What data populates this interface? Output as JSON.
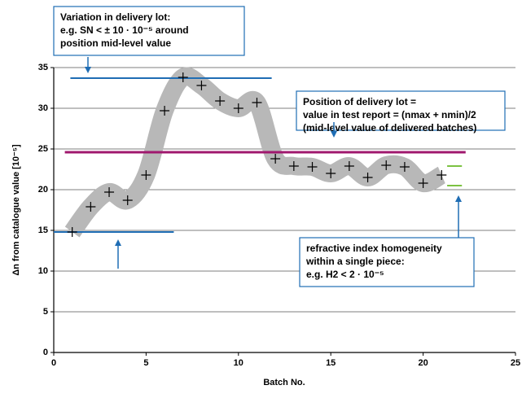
{
  "chart_data": {
    "type": "scatter",
    "xlabel": "Batch No.",
    "ylabel": "Δn from catalogue value [10⁻⁵]",
    "xlim": [
      0,
      25
    ],
    "xticks": [
      0,
      5,
      10,
      15,
      20,
      25
    ],
    "ylim": [
      0,
      35
    ],
    "yticks": [
      0,
      5,
      10,
      15,
      20,
      25,
      30,
      35
    ],
    "grid": true,
    "series": [
      {
        "color": "#000000",
        "x": [
          1,
          2,
          3,
          4,
          5,
          6,
          7,
          8,
          9,
          10,
          11,
          12,
          13,
          14,
          15,
          16,
          17,
          18,
          19,
          20,
          21
        ],
        "values": [
          14.8,
          17.9,
          19.7,
          18.7,
          21.8,
          29.7,
          33.8,
          32.8,
          30.9,
          30.0,
          30.7,
          23.8,
          22.9,
          22.8,
          22.0,
          22.9,
          21.5,
          23.0,
          22.8,
          20.8,
          21.8
        ]
      }
    ],
    "band_color": "#b8b8b8",
    "reference_lines": [
      {
        "y": 33.7,
        "x": [
          0.9,
          11.8
        ],
        "color": "#1f6db4"
      },
      {
        "y": 14.8,
        "x": [
          0,
          6.5
        ],
        "color": "#1f6db4"
      },
      {
        "y": 24.6,
        "x": [
          0.6,
          22.3
        ],
        "color": "#a0186e"
      },
      {
        "y": 22.9,
        "x": [
          21.3,
          22.1
        ],
        "color": "#7cc242"
      },
      {
        "y": 20.5,
        "x": [
          21.3,
          22.1
        ],
        "color": "#7cc242"
      }
    ],
    "annotations": [
      {
        "lines": [
          "Variation in delivery lot:",
          "e.g. SN < ± 10 · 10⁻⁵ around",
          "position mid-level value"
        ]
      },
      {
        "lines": [
          "Position of delivery lot =",
          "value in test report = (nmax + nmin)/2",
          "(mid-level value of delivered batches)"
        ]
      },
      {
        "lines": [
          "refractive index homogeneity",
          "within a single piece:",
          "e.g. H2 < 2 · 10⁻⁵"
        ]
      }
    ]
  }
}
